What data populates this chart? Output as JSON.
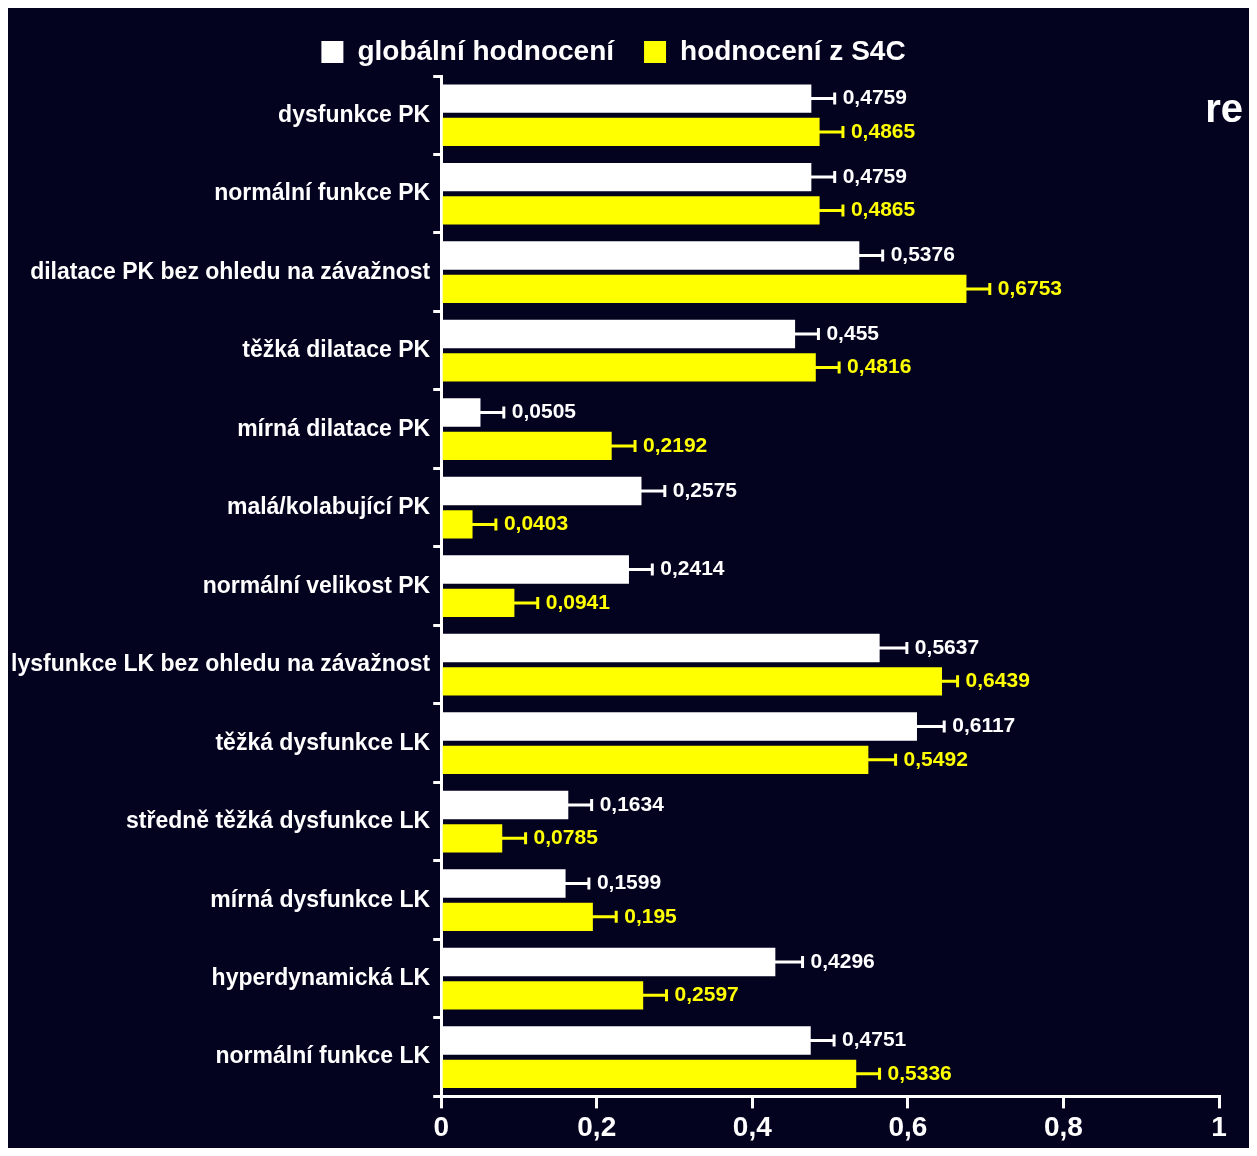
{
  "chart_data": {
    "type": "bar",
    "orientation": "horizontal",
    "categories": [
      "dysfunkce PK",
      "normální funkce PK",
      "dilatace PK bez ohledu na závažnost",
      "těžká dilatace PK",
      "mírná dilatace PK",
      "malá/kolabující PK",
      "normální velikost PK",
      "lysfunkce LK bez ohledu na závažnost",
      "těžká dysfunkce LK",
      "středně těžká dysfunkce LK",
      "mírná dysfunkce LK",
      "hyperdynamická LK",
      "normální funkce LK"
    ],
    "series": [
      {
        "name": "globální hodnocení",
        "color": "#ffffff",
        "values": [
          0.4759,
          0.4759,
          0.5376,
          0.455,
          0.0505,
          0.2575,
          0.2414,
          0.5637,
          0.6117,
          0.1634,
          0.1599,
          0.4296,
          0.4751
        ],
        "errors": [
          0.03,
          0.03,
          0.03,
          0.03,
          0.03,
          0.03,
          0.03,
          0.035,
          0.035,
          0.03,
          0.03,
          0.035,
          0.03
        ],
        "value_labels": [
          "0,4759",
          "0,4759",
          "0,5376",
          "0,455",
          "0,0505",
          "0,2575",
          "0,2414",
          "0,5637",
          "0,6117",
          "0,1634",
          "0,1599",
          "0,4296",
          "0,4751"
        ]
      },
      {
        "name": "hodnocení z S4C",
        "color": "#ffff00",
        "values": [
          0.4865,
          0.4865,
          0.6753,
          0.4816,
          0.2192,
          0.0403,
          0.0941,
          0.6439,
          0.5492,
          0.0785,
          0.195,
          0.2597,
          0.5336
        ],
        "errors": [
          0.03,
          0.03,
          0.03,
          0.03,
          0.03,
          0.03,
          0.03,
          0.02,
          0.035,
          0.03,
          0.03,
          0.03,
          0.03
        ],
        "value_labels": [
          "0,4865",
          "0,4865",
          "0,6753",
          "0,4816",
          "0,2192",
          "0,0403",
          "0,0941",
          "0,6439",
          "0,5492",
          "0,0785",
          "0,195",
          "0,2597",
          "0,5336"
        ]
      }
    ],
    "xlim": [
      0,
      1
    ],
    "xticks": [
      0,
      {
        "value": 0.2,
        "label": "0,2"
      },
      {
        "value": 0.4,
        "label": "0,4"
      },
      {
        "value": 0.6,
        "label": "0,6"
      },
      {
        "value": 0.8,
        "label": "0,8"
      },
      1
    ],
    "grid": false,
    "legend": "top",
    "annotations": [
      "re"
    ]
  }
}
